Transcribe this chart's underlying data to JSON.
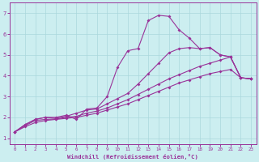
{
  "xlabel": "Windchill (Refroidissement éolien,°C)",
  "bg_color": "#cceef0",
  "grid_color": "#aad8dc",
  "line_color": "#993399",
  "x_ticks": [
    0,
    1,
    2,
    3,
    4,
    5,
    6,
    7,
    8,
    9,
    10,
    11,
    12,
    13,
    14,
    15,
    16,
    17,
    18,
    19,
    20,
    21,
    22,
    23
  ],
  "y_ticks": [
    1,
    2,
    3,
    4,
    5,
    6,
    7
  ],
  "xlim": [
    -0.5,
    23.5
  ],
  "ylim": [
    0.7,
    7.5
  ],
  "curve_top": [
    1.3,
    1.65,
    1.9,
    2.0,
    2.0,
    2.1,
    1.9,
    2.4,
    2.45,
    3.0,
    4.4,
    5.2,
    5.3,
    6.65,
    6.9,
    6.85,
    6.2,
    null,
    null,
    null,
    null,
    null,
    null,
    null
  ],
  "curve_peak": [
    null,
    null,
    null,
    null,
    null,
    null,
    null,
    null,
    null,
    null,
    null,
    null,
    null,
    null,
    null,
    null,
    6.2,
    5.8,
    null,
    null,
    null,
    null,
    null,
    null
  ],
  "curve_a": [
    1.3,
    1.65,
    1.9,
    2.0,
    2.0,
    2.1,
    1.9,
    2.4,
    2.45,
    3.0,
    4.4,
    5.2,
    5.3,
    6.65,
    6.9,
    6.85,
    6.2,
    5.8,
    5.3,
    5.35,
    5.0,
    4.9,
    3.9,
    3.85
  ],
  "curve_b": [
    1.3,
    1.65,
    1.9,
    2.0,
    1.95,
    2.05,
    2.2,
    2.35,
    2.4,
    2.65,
    2.9,
    3.15,
    3.6,
    4.1,
    4.6,
    5.1,
    5.3,
    5.35,
    5.3,
    5.35,
    5.0,
    4.9,
    3.9,
    3.85
  ],
  "curve_c": [
    1.3,
    1.6,
    1.85,
    1.9,
    1.92,
    2.0,
    2.05,
    2.2,
    2.3,
    2.45,
    2.65,
    2.85,
    3.1,
    3.35,
    3.6,
    3.85,
    4.05,
    4.25,
    4.45,
    4.6,
    4.75,
    4.9,
    3.9,
    3.85
  ],
  "curve_d": [
    1.3,
    1.55,
    1.75,
    1.85,
    1.9,
    1.95,
    2.0,
    2.1,
    2.2,
    2.35,
    2.5,
    2.65,
    2.85,
    3.05,
    3.25,
    3.45,
    3.65,
    3.8,
    3.95,
    4.1,
    4.2,
    4.3,
    3.9,
    3.85
  ]
}
